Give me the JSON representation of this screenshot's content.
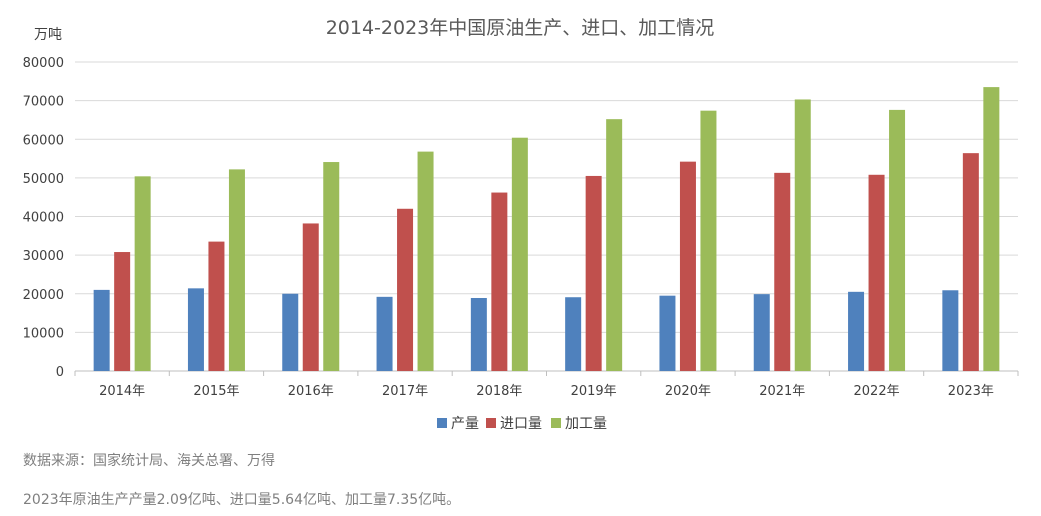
{
  "chart_data": {
    "type": "bar",
    "title": "2014-2023年中国原油生产、进口、加工情况",
    "ylabel": "万吨",
    "categories": [
      "2014年",
      "2015年",
      "2016年",
      "2017年",
      "2018年",
      "2019年",
      "2020年",
      "2021年",
      "2022年",
      "2023年"
    ],
    "series": [
      {
        "name": "产量",
        "color": "#4F81BD",
        "values": [
          21000,
          21400,
          20000,
          19200,
          18900,
          19100,
          19500,
          19900,
          20500,
          20900
        ]
      },
      {
        "name": "进口量",
        "color": "#C0504D",
        "values": [
          30800,
          33500,
          38200,
          42000,
          46200,
          50500,
          54200,
          51300,
          50800,
          56400
        ]
      },
      {
        "name": "加工量",
        "color": "#9BBB59",
        "values": [
          50400,
          52200,
          54100,
          56800,
          60400,
          65200,
          67400,
          70300,
          67600,
          73500
        ]
      }
    ],
    "ylim": [
      0,
      80000
    ],
    "yticks": [
      0,
      10000,
      20000,
      30000,
      40000,
      50000,
      60000,
      70000,
      80000
    ],
    "grid": true,
    "legend": "bottom"
  },
  "footer": {
    "source": "数据来源：国家统计局、海关总署、万得",
    "summary": "2023年原油生产产量2.09亿吨、进口量5.64亿吨、加工量7.35亿吨。"
  }
}
